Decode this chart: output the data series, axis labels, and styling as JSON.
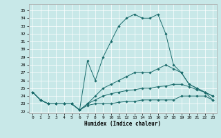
{
  "title": "",
  "xlabel": "Humidex (Indice chaleur)",
  "bg_color": "#c8e8e8",
  "grid_color": "#ffffff",
  "line_color": "#1a6b6b",
  "xlim": [
    -0.5,
    23.5
  ],
  "ylim": [
    21.8,
    35.8
  ],
  "yticks": [
    22,
    23,
    24,
    25,
    26,
    27,
    28,
    29,
    30,
    31,
    32,
    33,
    34,
    35
  ],
  "xticks": [
    0,
    1,
    2,
    3,
    4,
    5,
    6,
    7,
    8,
    9,
    10,
    11,
    12,
    13,
    14,
    15,
    16,
    17,
    18,
    19,
    20,
    21,
    22,
    23
  ],
  "series": [
    {
      "x": [
        0,
        1,
        2,
        3,
        4,
        5,
        6,
        7,
        8,
        9,
        10,
        11,
        12,
        13,
        14,
        15,
        16,
        17,
        18,
        19,
        20,
        21,
        22,
        23
      ],
      "y": [
        24.5,
        23.5,
        23.0,
        23.0,
        23.0,
        23.0,
        22.2,
        22.8,
        23.0,
        23.0,
        23.0,
        23.2,
        23.3,
        23.3,
        23.5,
        23.5,
        23.5,
        23.5,
        23.5,
        24.0,
        24.0,
        24.0,
        24.0,
        23.5
      ]
    },
    {
      "x": [
        0,
        1,
        2,
        3,
        4,
        5,
        6,
        7,
        8,
        9,
        10,
        11,
        12,
        13,
        14,
        15,
        16,
        17,
        18,
        19,
        20,
        21,
        22,
        23
      ],
      "y": [
        24.5,
        23.5,
        23.0,
        23.0,
        23.0,
        23.0,
        22.2,
        23.0,
        23.5,
        24.0,
        24.3,
        24.5,
        24.7,
        24.8,
        25.0,
        25.0,
        25.2,
        25.3,
        25.5,
        25.5,
        25.2,
        24.8,
        24.5,
        24.0
      ]
    },
    {
      "x": [
        0,
        1,
        2,
        3,
        4,
        5,
        6,
        7,
        8,
        9,
        10,
        11,
        12,
        13,
        14,
        15,
        16,
        17,
        18,
        19,
        20,
        21,
        22,
        23
      ],
      "y": [
        24.5,
        23.5,
        23.0,
        23.0,
        23.0,
        23.0,
        22.2,
        23.0,
        24.0,
        25.0,
        25.5,
        26.0,
        26.5,
        27.0,
        27.0,
        27.0,
        27.5,
        28.0,
        27.5,
        27.0,
        25.5,
        25.0,
        24.5,
        24.0
      ]
    },
    {
      "x": [
        0,
        1,
        2,
        3,
        4,
        5,
        6,
        7,
        8,
        9,
        10,
        11,
        12,
        13,
        14,
        15,
        16,
        17,
        18,
        19,
        20,
        21,
        22,
        23
      ],
      "y": [
        24.5,
        23.5,
        23.0,
        23.0,
        23.0,
        23.0,
        22.2,
        28.5,
        26.0,
        29.0,
        31.0,
        33.0,
        34.0,
        34.5,
        34.0,
        34.0,
        34.5,
        32.0,
        28.0,
        27.0,
        25.5,
        25.0,
        24.5,
        23.5
      ]
    }
  ]
}
